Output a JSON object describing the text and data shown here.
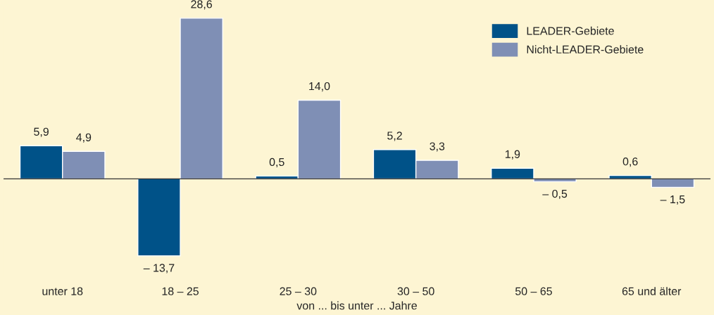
{
  "chart_data": {
    "type": "bar",
    "xlabel": "von ... bis unter ... Jahre",
    "categories": [
      "unter 18",
      "18 – 25",
      "25 – 30",
      "30 – 50",
      "50 – 65",
      "65 und älter"
    ],
    "series": [
      {
        "name": "LEADER-Gebiete",
        "color": "#005288",
        "values": [
          5.9,
          -13.7,
          0.5,
          5.2,
          1.9,
          0.6
        ],
        "value_labels": [
          "5,9",
          "– 13,7",
          "0,5",
          "5,2",
          "1,9",
          "0,6"
        ]
      },
      {
        "name": "Nicht-LEADER-Gebiete",
        "color": "#7f8fb5",
        "values": [
          4.9,
          28.6,
          14.0,
          3.3,
          -0.5,
          -1.5
        ],
        "value_labels": [
          "4,9",
          "28,6",
          "14,0",
          "3,3",
          "– 0,5",
          "– 1,5"
        ]
      }
    ],
    "legend": "top right",
    "grid": false
  }
}
